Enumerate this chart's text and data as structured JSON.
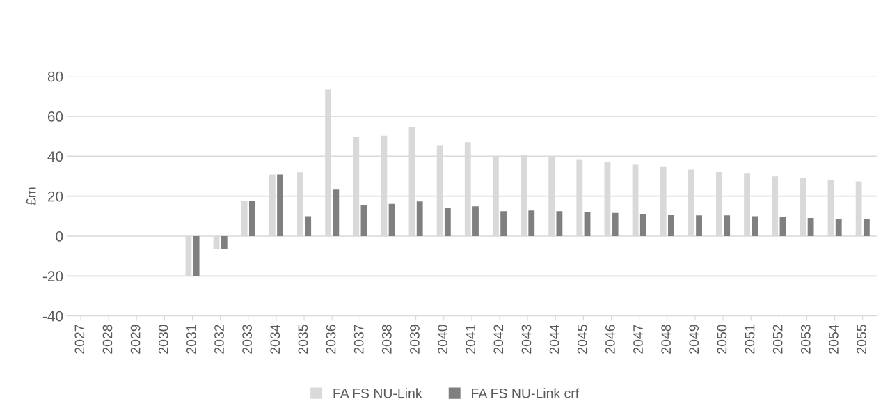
{
  "chart_data": {
    "type": "bar",
    "ylabel": "£m",
    "categories": [
      "2027",
      "2028",
      "2029",
      "2030",
      "2031",
      "2032",
      "2033",
      "2034",
      "2035",
      "2036",
      "2037",
      "2038",
      "2039",
      "2040",
      "2041",
      "2042",
      "2043",
      "2044",
      "2045",
      "2046",
      "2047",
      "2048",
      "2049",
      "2050",
      "2051",
      "2052",
      "2053",
      "2054",
      "2055"
    ],
    "series": [
      {
        "name": "FA FS NU-Link",
        "color": "#d9d9d9",
        "values": [
          null,
          null,
          null,
          null,
          -20,
          -6.6,
          17.8,
          30.9,
          32.0,
          73.4,
          49.6,
          50.3,
          54.5,
          45.5,
          47.0,
          39.4,
          40.8,
          39.4,
          38.2,
          37.0,
          35.8,
          34.6,
          33.3,
          32.1,
          31.3,
          29.9,
          29.1,
          28.3,
          27.4
        ]
      },
      {
        "name": "FA FS NU-Link crf",
        "color": "#7f7f7f",
        "values": [
          null,
          null,
          null,
          null,
          -20,
          -6.6,
          17.8,
          30.9,
          9.9,
          23.3,
          15.6,
          16.1,
          17.4,
          14.1,
          14.9,
          12.5,
          12.8,
          12.5,
          11.9,
          11.6,
          11.2,
          10.8,
          10.4,
          10.4,
          9.9,
          9.5,
          9.1,
          8.6,
          8.6
        ]
      }
    ],
    "ylim": [
      -40,
      80
    ],
    "yticks": [
      -40,
      -20,
      0,
      20,
      40,
      60,
      80
    ],
    "grid": "y",
    "legend": "bottom"
  }
}
